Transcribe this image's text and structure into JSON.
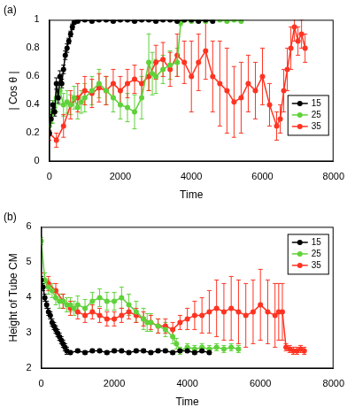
{
  "chart_data": [
    {
      "type": "line",
      "title": "(a)",
      "x_label": "Time",
      "y_label": "| Cos θ |",
      "xlim": [
        0,
        8000
      ],
      "xticks": [
        0,
        2000,
        4000,
        6000,
        8000
      ],
      "ylim": [
        0,
        1
      ],
      "yticks": [
        0,
        0.2,
        0.4,
        0.6,
        0.8,
        1
      ],
      "grid": false,
      "legend": "lower right",
      "series": [
        {
          "name": "15",
          "color": "#000000",
          "marker": "circle",
          "x": [
            0,
            50,
            100,
            150,
            200,
            250,
            300,
            350,
            400,
            450,
            500,
            550,
            600,
            650,
            700,
            800,
            1000,
            1200,
            1400,
            1600,
            1800,
            2000,
            2200,
            2400,
            2600,
            2800,
            3000,
            3200,
            3400,
            3600,
            3800,
            4000,
            4200,
            4400,
            4600
          ],
          "values": [
            0.2,
            0.3,
            0.4,
            0.35,
            0.55,
            0.45,
            0.6,
            0.55,
            0.65,
            0.75,
            0.8,
            0.85,
            0.9,
            0.95,
            0.98,
            0.99,
            1,
            0.99,
            1,
            1,
            0.99,
            1,
            1,
            0.99,
            1,
            1,
            0.99,
            1,
            1,
            0.99,
            1,
            1,
            0.99,
            1,
            0.99
          ],
          "errors": [
            0.02,
            0.03,
            0.03,
            0.03,
            0.04,
            0.04,
            0.04,
            0.03,
            0.03,
            0.03,
            0.03,
            0.02,
            0.02,
            0.02,
            0.01,
            0.01,
            0.01,
            0.01,
            0.01,
            0.01,
            0.01,
            0.01,
            0.01,
            0.01,
            0.01,
            0.01,
            0.01,
            0.01,
            0.01,
            0.01,
            0.01,
            0.01,
            0.01,
            0.01,
            0.01
          ]
        },
        {
          "name": "25",
          "color": "#5fd23a",
          "marker": "circle",
          "x": [
            0,
            100,
            200,
            300,
            400,
            500,
            600,
            700,
            800,
            900,
            1000,
            1200,
            1400,
            1600,
            1800,
            2000,
            2200,
            2400,
            2600,
            2800,
            2900,
            3000,
            3200,
            3400,
            3600,
            3700,
            3800,
            4000,
            4200,
            4400,
            4600,
            4800,
            5000,
            5200,
            5400
          ],
          "values": [
            0.25,
            0.35,
            0.45,
            0.5,
            0.4,
            0.42,
            0.4,
            0.45,
            0.38,
            0.42,
            0.45,
            0.5,
            0.55,
            0.5,
            0.45,
            0.4,
            0.38,
            0.35,
            0.45,
            0.7,
            0.62,
            0.6,
            0.65,
            0.68,
            0.7,
            0.98,
            1,
            0.99,
            1,
            0.99,
            1,
            1,
            0.99,
            1,
            0.99
          ],
          "errors": [
            0.05,
            0.08,
            0.1,
            0.1,
            0.08,
            0.08,
            0.07,
            0.08,
            0.08,
            0.08,
            0.1,
            0.1,
            0.1,
            0.1,
            0.1,
            0.1,
            0.1,
            0.12,
            0.15,
            0.2,
            0.15,
            0.12,
            0.1,
            0.1,
            0.1,
            0.02,
            0.01,
            0.01,
            0.01,
            0.01,
            0.01,
            0.01,
            0.01,
            0.01,
            0.01
          ]
        },
        {
          "name": "35",
          "color": "#ff3322",
          "marker": "circle",
          "x": [
            0,
            200,
            400,
            600,
            800,
            1000,
            1200,
            1400,
            1600,
            1800,
            2000,
            2200,
            2400,
            2600,
            2800,
            3000,
            3200,
            3400,
            3600,
            3800,
            4000,
            4200,
            4400,
            4600,
            4800,
            5000,
            5200,
            5400,
            5600,
            5800,
            6000,
            6200,
            6400,
            6500,
            6600,
            6700,
            6800,
            6900,
            7000,
            7100,
            7200
          ],
          "values": [
            0.2,
            0.15,
            0.25,
            0.4,
            0.45,
            0.5,
            0.48,
            0.52,
            0.5,
            0.55,
            0.5,
            0.55,
            0.58,
            0.55,
            0.6,
            0.7,
            0.72,
            0.65,
            0.75,
            0.7,
            0.6,
            0.7,
            0.78,
            0.6,
            0.55,
            0.5,
            0.42,
            0.45,
            0.55,
            0.5,
            0.6,
            0.4,
            0.25,
            0.3,
            0.5,
            0.65,
            0.8,
            0.95,
            0.85,
            0.9,
            0.8
          ],
          "errors": [
            0.05,
            0.05,
            0.08,
            0.1,
            0.1,
            0.1,
            0.1,
            0.1,
            0.1,
            0.1,
            0.1,
            0.1,
            0.1,
            0.1,
            0.1,
            0.12,
            0.12,
            0.12,
            0.15,
            0.15,
            0.25,
            0.2,
            0.2,
            0.25,
            0.3,
            0.3,
            0.25,
            0.25,
            0.2,
            0.2,
            0.2,
            0.15,
            0.1,
            0.1,
            0.15,
            0.15,
            0.15,
            0.1,
            0.1,
            0.1,
            0.1
          ]
        }
      ]
    },
    {
      "type": "line",
      "title": "(b)",
      "x_label": "Time",
      "y_label": "Height of Tube CM",
      "xlim": [
        0,
        8000
      ],
      "xticks": [
        0,
        2000,
        4000,
        6000,
        8000
      ],
      "ylim": [
        2,
        6
      ],
      "yticks": [
        2,
        3,
        4,
        5,
        6
      ],
      "grid": false,
      "legend": "upper right",
      "series": [
        {
          "name": "15",
          "color": "#000000",
          "marker": "circle",
          "x": [
            0,
            50,
            100,
            150,
            200,
            250,
            300,
            350,
            400,
            450,
            500,
            550,
            600,
            650,
            700,
            800,
            1000,
            1200,
            1400,
            1600,
            1800,
            2000,
            2200,
            2400,
            2600,
            2800,
            3000,
            3200,
            3400,
            3600,
            3800,
            4000,
            4200,
            4400,
            4600
          ],
          "values": [
            4.5,
            4.3,
            4.0,
            3.8,
            3.6,
            3.5,
            3.3,
            3.2,
            3.1,
            3.0,
            2.9,
            2.8,
            2.7,
            2.6,
            2.5,
            2.45,
            2.5,
            2.45,
            2.5,
            2.5,
            2.45,
            2.5,
            2.5,
            2.45,
            2.5,
            2.5,
            2.45,
            2.5,
            2.5,
            2.45,
            2.5,
            2.5,
            2.45,
            2.5,
            2.45
          ],
          "errors": [
            0.1,
            0.1,
            0.1,
            0.1,
            0.1,
            0.1,
            0.1,
            0.1,
            0.1,
            0.1,
            0.1,
            0.1,
            0.1,
            0.1,
            0.1,
            0.05,
            0.05,
            0.05,
            0.05,
            0.05,
            0.05,
            0.05,
            0.05,
            0.05,
            0.05,
            0.05,
            0.05,
            0.05,
            0.05,
            0.05,
            0.05,
            0.05,
            0.05,
            0.05,
            0.05
          ]
        },
        {
          "name": "25",
          "color": "#5fd23a",
          "marker": "circle",
          "x": [
            0,
            100,
            200,
            300,
            400,
            500,
            600,
            700,
            800,
            900,
            1000,
            1200,
            1400,
            1600,
            1800,
            2000,
            2200,
            2400,
            2600,
            2800,
            2900,
            3000,
            3200,
            3400,
            3600,
            3700,
            3800,
            4000,
            4200,
            4400,
            4600,
            4800,
            5000,
            5200,
            5400
          ],
          "values": [
            5.6,
            4.5,
            4.3,
            4.2,
            4.0,
            3.9,
            3.9,
            3.8,
            3.8,
            3.7,
            3.8,
            3.7,
            3.9,
            4.0,
            3.9,
            3.9,
            4.0,
            3.8,
            3.6,
            3.4,
            3.3,
            3.3,
            3.2,
            3.1,
            2.9,
            2.7,
            2.5,
            2.6,
            2.55,
            2.6,
            2.55,
            2.6,
            2.55,
            2.6,
            2.55
          ],
          "errors": [
            0.1,
            0.2,
            0.2,
            0.2,
            0.2,
            0.2,
            0.2,
            0.2,
            0.2,
            0.2,
            0.25,
            0.25,
            0.25,
            0.25,
            0.25,
            0.25,
            0.3,
            0.3,
            0.3,
            0.3,
            0.25,
            0.25,
            0.2,
            0.2,
            0.2,
            0.15,
            0.1,
            0.1,
            0.1,
            0.1,
            0.1,
            0.1,
            0.1,
            0.1,
            0.1
          ]
        },
        {
          "name": "35",
          "color": "#ff3322",
          "marker": "circle",
          "x": [
            0,
            200,
            400,
            600,
            800,
            1000,
            1200,
            1400,
            1600,
            1800,
            2000,
            2200,
            2400,
            2600,
            2800,
            3000,
            3200,
            3400,
            3600,
            3800,
            4000,
            4200,
            4400,
            4600,
            4800,
            5000,
            5200,
            5400,
            5600,
            5800,
            6000,
            6200,
            6400,
            6500,
            6600,
            6700,
            6800,
            6900,
            7000,
            7100,
            7200
          ],
          "values": [
            4.5,
            4.4,
            4.2,
            3.9,
            3.7,
            3.6,
            3.5,
            3.6,
            3.5,
            3.4,
            3.4,
            3.5,
            3.6,
            3.5,
            3.4,
            3.3,
            3.2,
            3.2,
            3.1,
            3.3,
            3.4,
            3.5,
            3.5,
            3.6,
            3.7,
            3.6,
            3.7,
            3.6,
            3.5,
            3.6,
            3.8,
            3.6,
            3.5,
            3.6,
            3.6,
            2.6,
            2.55,
            2.5,
            2.5,
            2.55,
            2.5
          ],
          "errors": [
            0.2,
            0.2,
            0.2,
            0.2,
            0.2,
            0.2,
            0.2,
            0.2,
            0.2,
            0.2,
            0.2,
            0.2,
            0.2,
            0.2,
            0.2,
            0.2,
            0.2,
            0.2,
            0.2,
            0.2,
            0.3,
            0.4,
            0.5,
            0.6,
            0.8,
            0.8,
            0.9,
            0.9,
            0.9,
            0.9,
            1.0,
            0.9,
            0.9,
            0.8,
            0.8,
            0.1,
            0.1,
            0.1,
            0.1,
            0.1,
            0.1
          ]
        }
      ]
    }
  ]
}
